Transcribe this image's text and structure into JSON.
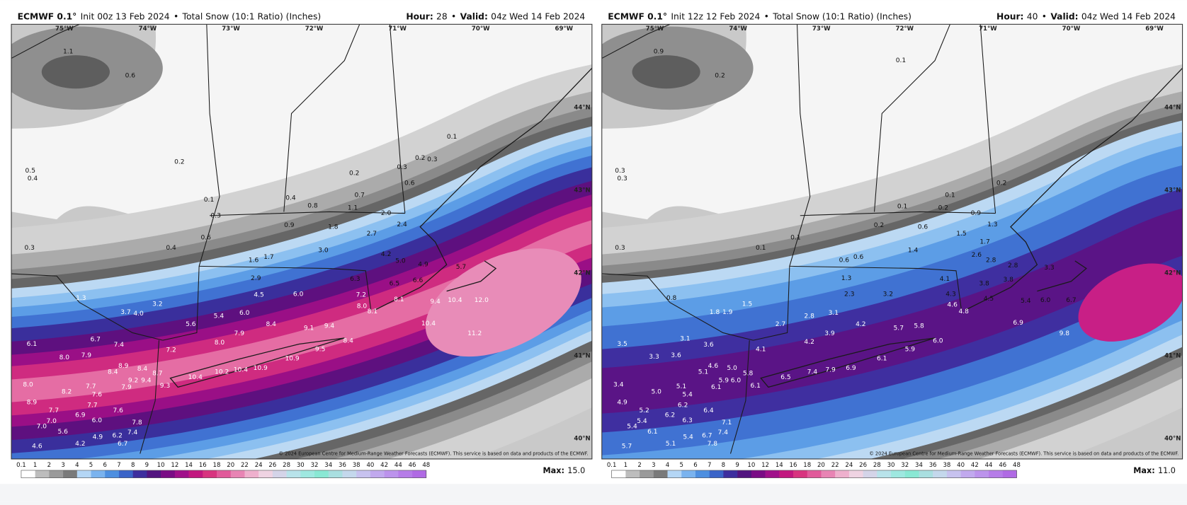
{
  "panels": [
    {
      "model": "ECMWF 0.1°",
      "init": "Init 00z 13 Feb 2024",
      "separator": "•",
      "product": "Total Snow (10:1 Ratio) (Inches)",
      "hour_label": "Hour:",
      "hour": "28",
      "valid_label": "Valid:",
      "valid": "04z Wed 14 Feb 2024",
      "max_label": "Max:",
      "max": "15.0",
      "copyright": "© 2024 European Centre for Medium-Range Weather Forecasts (ECMWF). This service is based on data and products of the ECMWF.",
      "lon_labels": [
        "75°W",
        "74°W",
        "73°W",
        "72°W",
        "71°W",
        "70°W",
        "69°W"
      ],
      "lat_labels": [
        "44°N",
        "43°N",
        "42°N",
        "41°N",
        "40°N"
      ],
      "point_labels": [
        "1.1",
        "0.6",
        "0.2",
        "0.5",
        "0.4",
        "0.1",
        "0.3",
        "0.3",
        "0.4",
        "0.6",
        "0.4",
        "0.8",
        "0.2",
        "0.7",
        "1.1",
        "0.9",
        "1.8",
        "2.0",
        "2.4",
        "0.3",
        "0.2",
        "0.3",
        "0.1",
        "0.6",
        "2.7",
        "3.0",
        "1.6",
        "1.7",
        "4.2",
        "5.0",
        "4.9",
        "5.7",
        "2.9",
        "4.5",
        "6.0",
        "6.3",
        "7.2",
        "8.0",
        "8.1",
        "6.5",
        "6.6",
        "8.1",
        "9.4",
        "10.4",
        "12.0",
        "10.4",
        "11.2",
        "1.3",
        "3.7",
        "4.0",
        "3.2",
        "5.6",
        "5.4",
        "6.0",
        "8.4",
        "9.1",
        "9.4",
        "7.9",
        "8.0",
        "8.4",
        "9.5",
        "10.9",
        "10.9",
        "10.4",
        "10.2",
        "10.4",
        "6.1",
        "6.7",
        "7.4",
        "8.0",
        "7.9",
        "7.2",
        "8.4",
        "8.9",
        "8.4",
        "8.7",
        "9.4",
        "9.2",
        "7.9",
        "9.3",
        "8.0",
        "8.2",
        "7.7",
        "7.6",
        "7.7",
        "8.9",
        "7.7",
        "7.6",
        "6.9",
        "7.0",
        "6.0",
        "7.8",
        "7.0",
        "5.6",
        "6.2",
        "7.4",
        "4.9",
        "4.2",
        "6.7",
        "4.6"
      ]
    },
    {
      "model": "ECMWF 0.1°",
      "init": "Init 12z 12 Feb 2024",
      "separator": "•",
      "product": "Total Snow (10:1 Ratio) (Inches)",
      "hour_label": "Hour:",
      "hour": "40",
      "valid_label": "Valid:",
      "valid": "04z Wed 14 Feb 2024",
      "max_label": "Max:",
      "max": "11.0",
      "copyright": "© 2024 European Centre for Medium-Range Weather Forecasts (ECMWF). This service is based on data and products of the ECMWF.",
      "lon_labels": [
        "75°W",
        "74°W",
        "73°W",
        "72°W",
        "71°W",
        "70°W",
        "69°W"
      ],
      "lat_labels": [
        "44°N",
        "43°N",
        "42°N",
        "41°N",
        "40°N"
      ],
      "point_labels": [
        "0.9",
        "0.2",
        "0.1",
        "0.3",
        "0.3",
        "0.2",
        "0.1",
        "0.1",
        "0.2",
        "0.9",
        "1.3",
        "0.2",
        "0.6",
        "1.5",
        "1.7",
        "0.1",
        "0.3",
        "0.1",
        "1.4",
        "2.6",
        "2.8",
        "0.6",
        "0.6",
        "2.8",
        "3.3",
        "1.3",
        "4.1",
        "3.8",
        "3.8",
        "2.3",
        "3.2",
        "4.3",
        "4.5",
        "4.6",
        "4.8",
        "5.4",
        "6.0",
        "6.7",
        "0.8",
        "1.8",
        "1.9",
        "1.5",
        "2.7",
        "2.8",
        "3.1",
        "4.2",
        "5.7",
        "5.8",
        "6.9",
        "9.8",
        "3.9",
        "4.2",
        "6.0",
        "5.9",
        "6.1",
        "6.9",
        "7.9",
        "7.4",
        "6.5",
        "4.1",
        "3.1",
        "3.6",
        "3.5",
        "3.3",
        "3.6",
        "5.1",
        "4.6",
        "5.0",
        "5.8",
        "6.0",
        "5.9",
        "6.1",
        "6.1",
        "3.4",
        "5.0",
        "5.1",
        "5.4",
        "6.2",
        "4.9",
        "5.2",
        "6.4",
        "6.2",
        "5.4",
        "6.3",
        "7.1",
        "5.4",
        "6.1",
        "6.7",
        "7.4",
        "5.4",
        "5.1",
        "7.8",
        "5.7"
      ]
    }
  ],
  "legend": {
    "ticks": [
      0.1,
      1,
      2,
      3,
      4,
      5,
      6,
      7,
      8,
      9,
      10,
      12,
      14,
      16,
      18,
      20,
      22,
      24,
      26,
      28,
      30,
      32,
      34,
      36,
      38,
      40,
      42,
      44,
      46,
      48
    ],
    "colors": [
      "#ffffff",
      "#bdbdbd",
      "#9a9a9a",
      "#7a7a7a",
      "#b4d6f5",
      "#7ab3ee",
      "#4d8fe0",
      "#3a64c8",
      "#3d2e9e",
      "#52147f",
      "#7a0c85",
      "#a0108a",
      "#c2187f",
      "#d8347f",
      "#e15a9a",
      "#e884b4",
      "#eeb0cd",
      "#efd3e2",
      "#d4d4e8",
      "#b8e3ea",
      "#9ee8e0",
      "#89e8d4",
      "#a9dfe0",
      "#c4d8ec",
      "#c7c2ef",
      "#c1a9ee",
      "#bc93ec",
      "#b67ce8",
      "#b06ae4"
    ]
  }
}
